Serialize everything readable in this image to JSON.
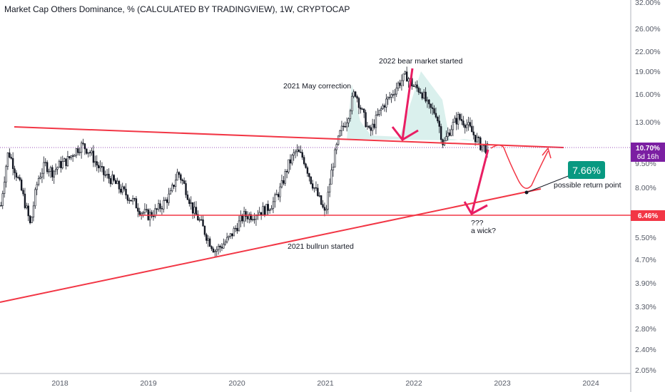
{
  "header": {
    "title": "Market Cap Others Dominance, % (CALCULATED BY TRADINGVIEW), 1W, CRYPTOCAP"
  },
  "chart_data": {
    "type": "candlestick",
    "title": "Market Cap Others Dominance, % (CALCULATED BY TRADINGVIEW), 1W, CRYPTOCAP",
    "y_axis": {
      "scale": "log",
      "unit": "%",
      "ticks": [
        "32.00%",
        "26.00%",
        "22.00%",
        "19.00%",
        "16.00%",
        "13.00%",
        "9.50%",
        "8.00%",
        "5.50%",
        "4.70%",
        "3.90%",
        "3.30%",
        "2.80%",
        "2.40%",
        "2.05%"
      ]
    },
    "x_axis": {
      "ticks": [
        "2018",
        "2019",
        "2020",
        "2021",
        "2022",
        "2023",
        "2024"
      ]
    },
    "series": [
      {
        "points": [
          [
            "2017-05",
            7.0
          ],
          [
            "2017-06",
            10.5
          ],
          [
            "2017-07",
            9.0
          ],
          [
            "2017-08",
            7.5
          ],
          [
            "2017-09",
            6.0
          ],
          [
            "2017-10",
            8.5
          ],
          [
            "2017-11",
            9.5
          ],
          [
            "2017-12",
            9.0
          ],
          [
            "2018-01",
            9.5
          ],
          [
            "2018-02",
            9.8
          ],
          [
            "2018-03",
            10.5
          ],
          [
            "2018-04",
            11.0
          ],
          [
            "2018-05",
            10.5
          ],
          [
            "2018-06",
            9.5
          ],
          [
            "2018-07",
            8.8
          ],
          [
            "2018-08",
            8.5
          ],
          [
            "2018-09",
            8.0
          ],
          [
            "2018-10",
            7.6
          ],
          [
            "2018-11",
            7.2
          ],
          [
            "2018-12",
            6.7
          ],
          [
            "2019-01",
            6.5
          ],
          [
            "2019-02",
            6.7
          ],
          [
            "2019-03",
            7.1
          ],
          [
            "2019-04",
            7.6
          ],
          [
            "2019-05",
            9.0
          ],
          [
            "2019-06",
            8.0
          ],
          [
            "2019-07",
            6.8
          ],
          [
            "2019-08",
            6.2
          ],
          [
            "2019-09",
            5.5
          ],
          [
            "2019-10",
            5.0
          ],
          [
            "2019-11",
            5.2
          ],
          [
            "2019-12",
            5.5
          ],
          [
            "2020-01",
            6.0
          ],
          [
            "2020-02",
            6.5
          ],
          [
            "2020-03",
            6.5
          ],
          [
            "2020-04",
            6.7
          ],
          [
            "2020-05",
            6.8
          ],
          [
            "2020-06",
            7.2
          ],
          [
            "2020-07",
            8.0
          ],
          [
            "2020-08",
            9.5
          ],
          [
            "2020-09",
            10.5
          ],
          [
            "2020-10",
            10.0
          ],
          [
            "2020-11",
            8.5
          ],
          [
            "2020-12",
            7.5
          ],
          [
            "2021-01",
            6.5
          ],
          [
            "2021-02",
            9.5
          ],
          [
            "2021-03",
            12.0
          ],
          [
            "2021-04",
            13.5
          ],
          [
            "2021-05",
            16.5
          ],
          [
            "2021-06",
            14.0
          ],
          [
            "2021-07",
            12.0
          ],
          [
            "2021-08",
            13.5
          ],
          [
            "2021-09",
            15.0
          ],
          [
            "2021-10",
            16.0
          ],
          [
            "2021-11",
            17.5
          ],
          [
            "2021-12",
            18.5
          ],
          [
            "2022-01",
            17.0
          ],
          [
            "2022-02",
            16.5
          ],
          [
            "2022-03",
            14.5
          ],
          [
            "2022-04",
            14.0
          ],
          [
            "2022-05",
            11.0
          ],
          [
            "2022-06",
            12.5
          ],
          [
            "2022-07",
            13.5
          ],
          [
            "2022-08",
            13.0
          ],
          [
            "2022-09",
            12.0
          ],
          [
            "2022-10",
            11.0
          ],
          [
            "2022-11",
            10.7
          ]
        ]
      }
    ],
    "current_price": "10.70%",
    "countdown": "6d 16h",
    "support_level": "6.46%",
    "target_badge": "7.66%",
    "annotations": [
      "2022 bear market started",
      "2021 May correction",
      "2021 bullrun started",
      "???",
      "a wick?",
      "possible return point"
    ],
    "colors": {
      "up_candle": "#131722",
      "down_candle": "#131722",
      "trendline": "#f23645",
      "arrow": "#e91e63",
      "pattern_fill": "#d1ece8",
      "price_tag": "#7b1fa2",
      "support_tag": "#f23645",
      "badge": "#089981"
    },
    "grid": false
  }
}
